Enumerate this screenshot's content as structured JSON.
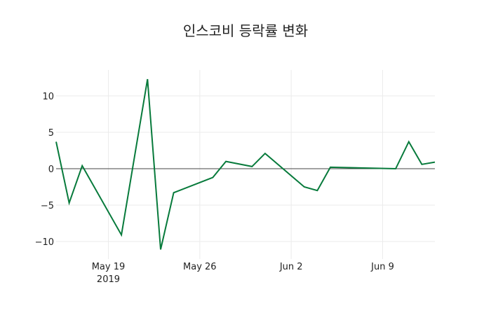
{
  "chart_data": {
    "type": "line",
    "title": "인스코비 등락률 변화",
    "xlabel": "",
    "ylabel": "",
    "x": [
      "2019-05-15",
      "2019-05-16",
      "2019-05-17",
      "2019-05-20",
      "2019-05-22",
      "2019-05-23",
      "2019-05-24",
      "2019-05-27",
      "2019-05-28",
      "2019-05-30",
      "2019-05-31",
      "2019-06-03",
      "2019-06-04",
      "2019-06-05",
      "2019-06-10",
      "2019-06-11",
      "2019-06-12",
      "2019-06-13"
    ],
    "series": [
      {
        "name": "등락률",
        "color": "#077a3b",
        "values": [
          3.7,
          -4.7,
          0.4,
          -9.1,
          12.3,
          -11.1,
          -3.3,
          -1.2,
          1.0,
          0.3,
          2.1,
          -2.5,
          -3.0,
          0.2,
          0.0,
          3.7,
          0.6,
          0.9
        ]
      }
    ],
    "x_ticks": [
      {
        "label": "May 19",
        "sub": "2019",
        "date": "2019-05-19"
      },
      {
        "label": "May 26",
        "date": "2019-05-26"
      },
      {
        "label": "Jun 2",
        "date": "2019-06-02"
      },
      {
        "label": "Jun 9",
        "date": "2019-06-09"
      }
    ],
    "y_ticks": [
      10,
      5,
      0,
      -5,
      -10
    ],
    "y_tick_labels": [
      "10",
      "5",
      "0",
      "−5",
      "−10"
    ],
    "ylim": [
      -12.6,
      13.4
    ],
    "xlim": [
      "2019-05-15",
      "2019-06-13"
    ],
    "grid": true,
    "legend": "none"
  }
}
